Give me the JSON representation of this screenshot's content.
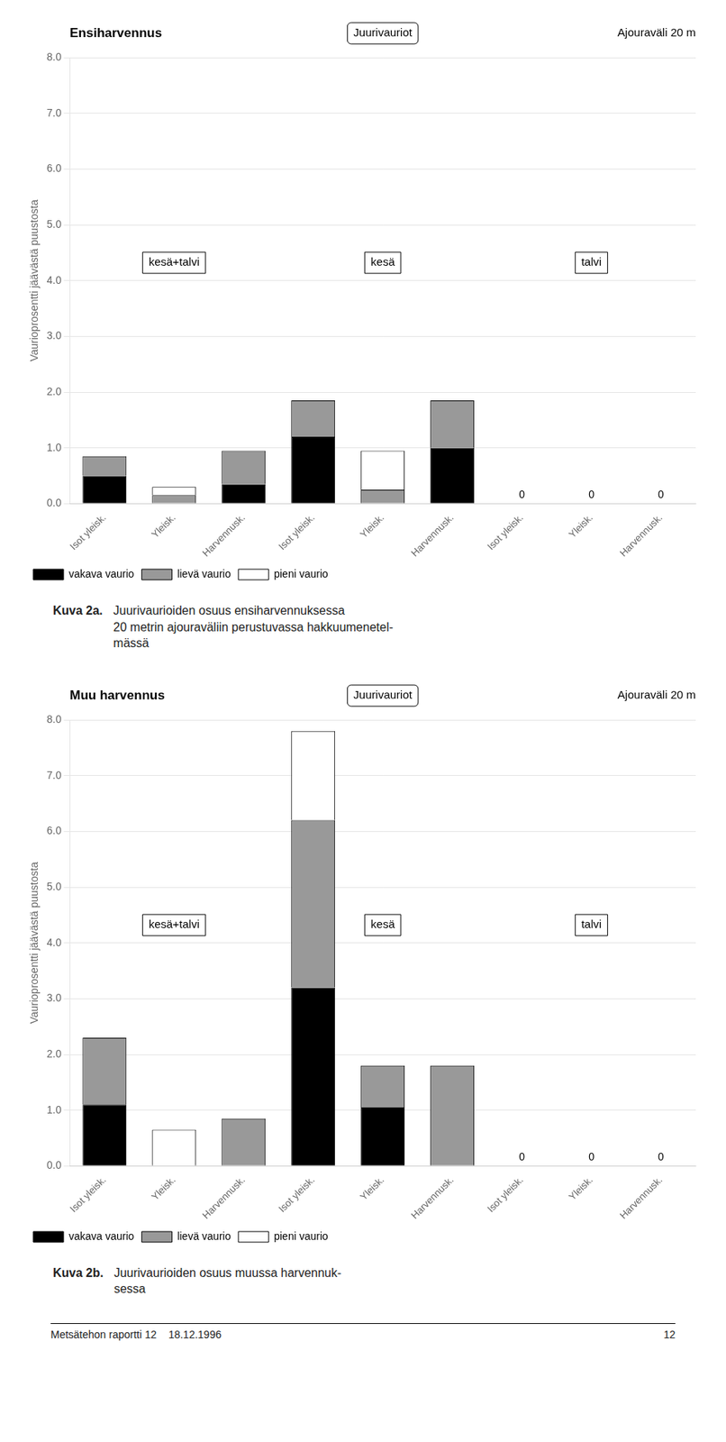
{
  "chart_data": [
    {
      "type": "bar",
      "stacked": true,
      "title": "Ensiharvennus",
      "subtitle": "Ajouraväli 20 m",
      "annotation": "Juurivauriot",
      "ylabel": "Vaurioprosentti jäävästä puustosta",
      "groups": [
        "kesä+talvi",
        "kesä",
        "talvi"
      ],
      "categories": [
        "Isot yleisk.",
        "Yleisk.",
        "Harvennusk.",
        "Isot yleisk.",
        "Yleisk.",
        "Harvennusk.",
        "Isot yleisk.",
        "Yleisk.",
        "Harvennusk."
      ],
      "series": [
        {
          "name": "vakava vaurio",
          "color": "#000000",
          "values": [
            0.5,
            0.0,
            0.35,
            1.2,
            0.0,
            1.0,
            0.0,
            0.0,
            0.0
          ]
        },
        {
          "name": "lievä vaurio",
          "color": "#999999",
          "values": [
            0.35,
            0.15,
            0.6,
            0.65,
            0.25,
            0.85,
            0.0,
            0.0,
            0.0
          ]
        },
        {
          "name": "pieni vaurio",
          "color": "#ffffff",
          "values": [
            0.0,
            0.15,
            0.0,
            0.0,
            0.7,
            0.0,
            0.0,
            0.0,
            0.0
          ]
        }
      ],
      "bar_labels": [
        null,
        null,
        null,
        null,
        null,
        null,
        "0",
        "0",
        "0"
      ],
      "ylim": [
        0.0,
        8.0
      ],
      "yticks": [
        {
          "value": 0.0,
          "label": "0.0"
        },
        {
          "value": 1.0,
          "label": "1.0"
        },
        {
          "value": 2.0,
          "label": "2.0"
        },
        {
          "value": 3.0,
          "label": "3.0"
        },
        {
          "value": 4.0,
          "label": "4.0"
        },
        {
          "value": 5.0,
          "label": "5.0"
        },
        {
          "value": 6.0,
          "label": "6.0"
        },
        {
          "value": 7.0,
          "label": "7.0"
        },
        {
          "value": 8.0,
          "label": "8.0"
        }
      ],
      "grid": true,
      "legend": "bottom",
      "caption_label": "Kuva 2a.",
      "caption": "Juurivaurioiden osuus ensiharvennuksessa\n20 metrin ajouraväliin perustuvassa hakkuumenetel-\nmässä"
    },
    {
      "type": "bar",
      "stacked": true,
      "title": "Muu harvennus",
      "subtitle": "Ajouraväli 20 m",
      "annotation": "Juurivauriot",
      "ylabel": "Vaurioprosentti jäävästä puustosta",
      "groups": [
        "kesä+talvi",
        "kesä",
        "talvi"
      ],
      "categories": [
        "Isot yleisk.",
        "Yleisk.",
        "Harvennusk.",
        "Isot yleisk.",
        "Yleisk.",
        "Harvennusk.",
        "Isot yleisk.",
        "Yleisk.",
        "Harvennusk."
      ],
      "series": [
        {
          "name": "vakava vaurio",
          "color": "#000000",
          "values": [
            1.1,
            0.0,
            0.0,
            3.2,
            1.05,
            0.0,
            0.0,
            0.0,
            0.0
          ]
        },
        {
          "name": "lievä vaurio",
          "color": "#999999",
          "values": [
            1.2,
            0.0,
            0.85,
            3.0,
            0.75,
            1.8,
            0.0,
            0.0,
            0.0
          ]
        },
        {
          "name": "pieni vaurio",
          "color": "#ffffff",
          "values": [
            0.0,
            0.65,
            0.0,
            1.6,
            0.0,
            0.0,
            0.0,
            0.0,
            0.0
          ]
        }
      ],
      "bar_labels": [
        null,
        null,
        null,
        null,
        null,
        null,
        "0",
        "0",
        "0"
      ],
      "ylim": [
        0.0,
        8.0
      ],
      "yticks": [
        {
          "value": 0.0,
          "label": "0.0"
        },
        {
          "value": 1.0,
          "label": "1.0"
        },
        {
          "value": 2.0,
          "label": "2.0"
        },
        {
          "value": 3.0,
          "label": "3.0"
        },
        {
          "value": 4.0,
          "label": "4.0"
        },
        {
          "value": 5.0,
          "label": "5.0"
        },
        {
          "value": 6.0,
          "label": "6.0"
        },
        {
          "value": 7.0,
          "label": "7.0"
        },
        {
          "value": 8.0,
          "label": "8.0"
        }
      ],
      "grid": true,
      "legend": "bottom",
      "caption_label": "Kuva 2b.",
      "caption": "Juurivaurioiden osuus muussa harvennuk-\nsessa"
    }
  ],
  "footer": [
    "Metsätehon raportti 12    18.12.1996",
    "12"
  ]
}
